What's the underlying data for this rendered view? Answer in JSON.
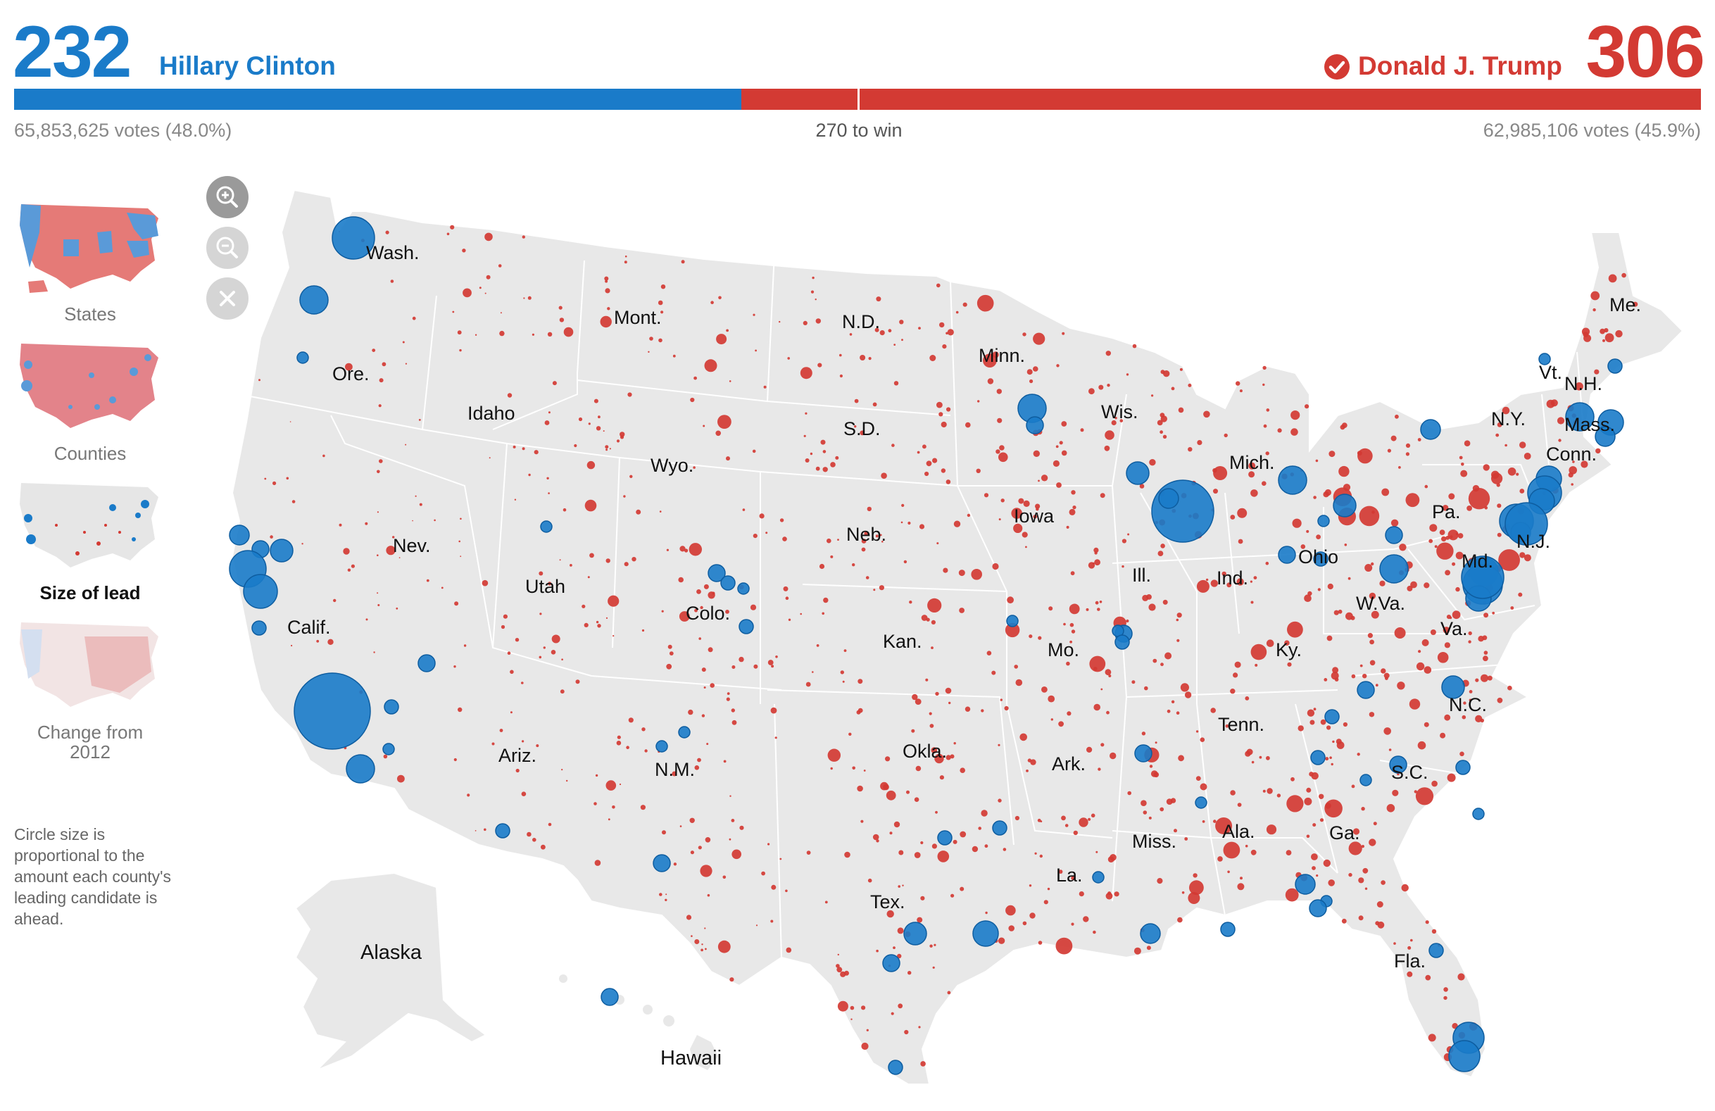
{
  "header": {
    "dem": {
      "electoral_votes": "232",
      "name": "Hillary Clinton",
      "votes": "65,853,625 votes (48.0%)"
    },
    "rep": {
      "electoral_votes": "306",
      "name": "Donald J. Trump",
      "votes": "62,985,106 votes (45.9%)",
      "winner_icon": "check-circle-icon"
    },
    "threshold": "270 to win",
    "bar": {
      "dem_ev": 232,
      "rep_ev": 306,
      "total_ev": 538
    }
  },
  "sidebar": {
    "views": [
      {
        "label": "States"
      },
      {
        "label": "Counties"
      },
      {
        "label": "Size of lead",
        "active": true
      },
      {
        "label": "Change from 2012"
      }
    ],
    "note": "Circle size is proportional to the amount each county's leading candidate is ahead."
  },
  "controls": {
    "zoom_in_icon": "zoom-in-icon",
    "zoom_out_icon": "zoom-out-icon",
    "reset_icon": "close-icon"
  },
  "map": {
    "state_labels": [
      "Wash.",
      "Ore.",
      "Calif.",
      "Nev.",
      "Idaho",
      "Mont.",
      "Wyo.",
      "Utah",
      "Colo.",
      "Ariz.",
      "N.M.",
      "N.D.",
      "S.D.",
      "Neb.",
      "Kan.",
      "Okla.",
      "Tex.",
      "Minn.",
      "Iowa",
      "Mo.",
      "Ark.",
      "La.",
      "Wis.",
      "Ill.",
      "Miss.",
      "Ala.",
      "Mich.",
      "Ind.",
      "Ohio",
      "Ky.",
      "Tenn.",
      "Ga.",
      "Fla.",
      "S.C.",
      "N.C.",
      "Va.",
      "W.Va.",
      "Pa.",
      "N.Y.",
      "Md.",
      "N.J.",
      "Conn.",
      "Mass.",
      "Vt.",
      "N.H.",
      "Me.",
      "Alaska",
      "Hawaii"
    ],
    "colors": {
      "dem": "#1a7bc9",
      "rep": "#d33a33",
      "land": "#e8e8e8",
      "border": "#ffffff"
    }
  }
}
